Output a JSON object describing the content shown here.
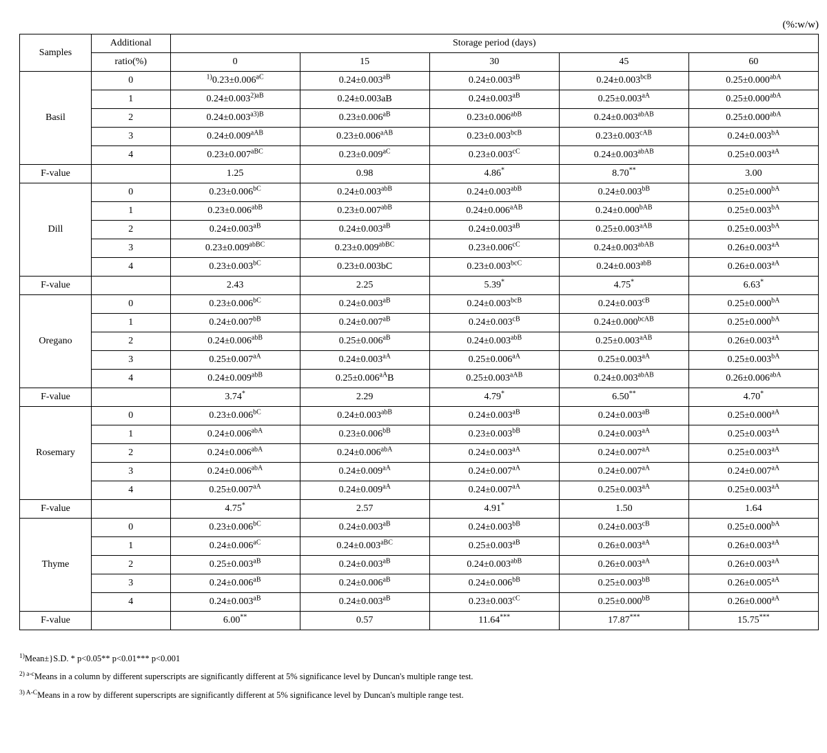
{
  "unit_label": "(%:w/w)",
  "headers": {
    "samples": "Samples",
    "additional_ratio_line1": "Additional",
    "additional_ratio_line2": "ratio(%)",
    "storage_period": "Storage period (days)",
    "days": [
      "0",
      "15",
      "30",
      "45",
      "60"
    ]
  },
  "samples": [
    {
      "name": "Basil",
      "fvalue_label": "F-value",
      "rows": [
        {
          "ratio": "0",
          "cells": [
            {
              "pre_sup": "1)",
              "val": "0.23±0.006",
              "sup": "aC"
            },
            {
              "val": "0.24±0.003",
              "sup": "aB"
            },
            {
              "val": "0.24±0.003",
              "sup": "aB"
            },
            {
              "val": "0.24±0.003",
              "sup": "bcB"
            },
            {
              "val": "0.25±0.000",
              "sup": "abA"
            }
          ]
        },
        {
          "ratio": "1",
          "cells": [
            {
              "val": "0.24±0.003",
              "sup": "2)aB"
            },
            {
              "val": "0.24±0.003aB"
            },
            {
              "val": "0.24±0.003",
              "sup": "aB"
            },
            {
              "val": "0.25±0.003",
              "sup": "aA"
            },
            {
              "val": "0.25±0.000",
              "sup": "abA"
            }
          ]
        },
        {
          "ratio": "2",
          "cells": [
            {
              "val": "0.24±0.003",
              "sup": "a3)B"
            },
            {
              "val": "0.23±0.006",
              "sup": "aB"
            },
            {
              "val": "0.23±0.006",
              "sup": "abB"
            },
            {
              "val": "0.24±0.003",
              "sup": "abAB"
            },
            {
              "val": "0.25±0.000",
              "sup": "abA"
            }
          ]
        },
        {
          "ratio": "3",
          "cells": [
            {
              "val": "0.24±0.009",
              "sup": "aAB"
            },
            {
              "val": "0.23±0.006",
              "sup": "aAB"
            },
            {
              "val": "0.23±0.003",
              "sup": "bcB"
            },
            {
              "val": "0.23±0.003",
              "sup": "cAB"
            },
            {
              "val": "0.24±0.003",
              "sup": "bA"
            }
          ]
        },
        {
          "ratio": "4",
          "cells": [
            {
              "val": "0.23±0.007",
              "sup": "aBC"
            },
            {
              "val": "0.23±0.009",
              "sup": "aC"
            },
            {
              "val": "0.23±0.003",
              "sup": "cC"
            },
            {
              "val": "0.24±0.003",
              "sup": "abAB"
            },
            {
              "val": "0.25±0.003",
              "sup": "aA"
            }
          ]
        }
      ],
      "fvalues": [
        "1.25",
        "0.98",
        "4.86*",
        "8.70**",
        "3.00"
      ]
    },
    {
      "name": "Dill",
      "fvalue_label": "F-value",
      "rows": [
        {
          "ratio": "0",
          "cells": [
            {
              "val": "0.23±0.006",
              "sup": "bC"
            },
            {
              "val": "0.24±0.003",
              "sup": "abB"
            },
            {
              "val": "0.24±0.003",
              "sup": "abB"
            },
            {
              "val": "0.24±0.003",
              "sup": "bB"
            },
            {
              "val": "0.25±0.000",
              "sup": "bA"
            }
          ]
        },
        {
          "ratio": "1",
          "cells": [
            {
              "val": "0.23±0.006",
              "sup": "abB"
            },
            {
              "val": "0.23±0.007",
              "sup": "abB"
            },
            {
              "val": "0.24±0.006",
              "sup": "aAB"
            },
            {
              "val": "0.24±0.000",
              "sup": "bAB"
            },
            {
              "val": "0.25±0.003",
              "sup": "bA"
            }
          ]
        },
        {
          "ratio": "2",
          "cells": [
            {
              "val": "0.24±0.003",
              "sup": "aB"
            },
            {
              "val": "0.24±0.003",
              "sup": "aB"
            },
            {
              "val": "0.24±0.003",
              "sup": "aB"
            },
            {
              "val": "0.25±0.003",
              "sup": "aAB"
            },
            {
              "val": "0.25±0.003",
              "sup": "bA"
            }
          ]
        },
        {
          "ratio": "3",
          "cells": [
            {
              "val": "0.23±0.009",
              "sup": "abBC"
            },
            {
              "val": "0.23±0.009",
              "sup": "abBC"
            },
            {
              "val": "0.23±0.006",
              "sup": "cC"
            },
            {
              "val": "0.24±0.003",
              "sup": "abAB"
            },
            {
              "val": "0.26±0.003",
              "sup": "aA"
            }
          ]
        },
        {
          "ratio": "4",
          "cells": [
            {
              "val": "0.23±0.003",
              "sup": "bC"
            },
            {
              "val": "0.23±0.003bC"
            },
            {
              "val": "0.23±0.003",
              "sup": "bcC"
            },
            {
              "val": "0.24±0.003",
              "sup": "abB"
            },
            {
              "val": "0.26±0.003",
              "sup": "aA"
            }
          ]
        }
      ],
      "fvalues": [
        "2.43",
        "2.25",
        "5.39*",
        "4.75*",
        "6.63*"
      ]
    },
    {
      "name": "Oregano",
      "fvalue_label": "F-value",
      "rows": [
        {
          "ratio": "0",
          "cells": [
            {
              "val": "0.23±0.006",
              "sup": "bC"
            },
            {
              "val": "0.24±0.003",
              "sup": "aB"
            },
            {
              "val": "0.24±0.003",
              "sup": "bcB"
            },
            {
              "val": "0.24±0.003",
              "sup": "cB"
            },
            {
              "val": "0.25±0.000",
              "sup": "bA"
            }
          ]
        },
        {
          "ratio": "1",
          "cells": [
            {
              "val": "0.24±0.007",
              "sup": "bB"
            },
            {
              "val": "0.24±0.007",
              "sup": "aB"
            },
            {
              "val": "0.24±0.003",
              "sup": "cB"
            },
            {
              "val": "0.24±0.000",
              "sup": "bcAB"
            },
            {
              "val": "0.25±0.000",
              "sup": "bA"
            }
          ]
        },
        {
          "ratio": "2",
          "cells": [
            {
              "val": "0.24±0.006",
              "sup": "abB"
            },
            {
              "val": "0.25±0.006",
              "sup": "aB"
            },
            {
              "val": "0.24±0.003",
              "sup": "abB"
            },
            {
              "val": "0.25±0.003",
              "sup": "aAB"
            },
            {
              "val": "0.26±0.003",
              "sup": "aA"
            }
          ]
        },
        {
          "ratio": "3",
          "cells": [
            {
              "val": "0.25±0.007",
              "sup": "aA"
            },
            {
              "val": "0.24±0.003",
              "sup": "aA"
            },
            {
              "val": "0.25±0.006",
              "sup": "aA"
            },
            {
              "val": "0.25±0.003",
              "sup": "aA"
            },
            {
              "val": "0.25±0.003",
              "sup": "bA"
            }
          ]
        },
        {
          "ratio": "4",
          "cells": [
            {
              "val": "0.24±0.009",
              "sup": "abB"
            },
            {
              "val": "0.25±0.006",
              "sup": "aA",
              "post": "B"
            },
            {
              "val": "0.25±0.003",
              "sup": "aAB"
            },
            {
              "val": "0.24±0.003",
              "sup": "abAB"
            },
            {
              "val": "0.26±0.006",
              "sup": "abA"
            }
          ]
        }
      ],
      "fvalues": [
        "3.74*",
        "2.29",
        "4.79*",
        "6.50**",
        "4.70*"
      ]
    },
    {
      "name": "Rosemary",
      "fvalue_label": "F-value",
      "rows": [
        {
          "ratio": "0",
          "cells": [
            {
              "val": "0.23±0.006",
              "sup": "bC"
            },
            {
              "val": "0.24±0.003",
              "sup": "abB"
            },
            {
              "val": "0.24±0.003",
              "sup": "aB"
            },
            {
              "val": "0.24±0.003",
              "sup": "aB"
            },
            {
              "val": "0.25±0.000",
              "sup": "aA"
            }
          ]
        },
        {
          "ratio": "1",
          "cells": [
            {
              "val": "0.24±0.006",
              "sup": "abA"
            },
            {
              "val": "0.23±0.006",
              "sup": "bB"
            },
            {
              "val": "0.23±0.003",
              "sup": "bB"
            },
            {
              "val": "0.24±0.003",
              "sup": "aA"
            },
            {
              "val": "0.25±0.003",
              "sup": "aA"
            }
          ]
        },
        {
          "ratio": "2",
          "cells": [
            {
              "val": "0.24±0.006",
              "sup": "abA"
            },
            {
              "val": "0.24±0.006",
              "sup": "abA"
            },
            {
              "val": "0.24±0.003",
              "sup": "aA"
            },
            {
              "val": "0.24±0.007",
              "sup": "aA"
            },
            {
              "val": "0.25±0.003",
              "sup": "aA"
            }
          ]
        },
        {
          "ratio": "3",
          "cells": [
            {
              "val": "0.24±0.006",
              "sup": "abA"
            },
            {
              "val": "0.24±0.009",
              "sup": "aA"
            },
            {
              "val": "0.24±0.007",
              "sup": "aA"
            },
            {
              "val": "0.24±0.007",
              "sup": "aA"
            },
            {
              "val": "0.24±0.007",
              "sup": "aA"
            }
          ]
        },
        {
          "ratio": "4",
          "cells": [
            {
              "val": "0.25±0.007",
              "sup": "aA"
            },
            {
              "val": "0.24±0.009",
              "sup": "aA"
            },
            {
              "val": "0.24±0.007",
              "sup": "aA"
            },
            {
              "val": "0.25±0.003",
              "sup": "aA"
            },
            {
              "val": "0.25±0.003",
              "sup": "aA"
            }
          ]
        }
      ],
      "fvalues": [
        "4.75*",
        "2.57",
        "4.91*",
        "1.50",
        "1.64"
      ]
    },
    {
      "name": "Thyme",
      "fvalue_label": "F-value",
      "rows": [
        {
          "ratio": "0",
          "cells": [
            {
              "val": "0.23±0.006",
              "sup": "bC"
            },
            {
              "val": "0.24±0.003",
              "sup": "aB"
            },
            {
              "val": "0.24±0.003",
              "sup": "bB"
            },
            {
              "val": "0.24±0.003",
              "sup": "cB"
            },
            {
              "val": "0.25±0.000",
              "sup": "bA"
            }
          ]
        },
        {
          "ratio": "1",
          "cells": [
            {
              "val": "0.24±0.006",
              "sup": "aC"
            },
            {
              "val": "0.24±0.003",
              "sup": "aBC"
            },
            {
              "val": "0.25±0.003",
              "sup": "aB"
            },
            {
              "val": "0.26±0.003",
              "sup": "aA"
            },
            {
              "val": "0.26±0.003",
              "sup": "aA"
            }
          ]
        },
        {
          "ratio": "2",
          "cells": [
            {
              "val": "0.25±0.003",
              "sup": "aB"
            },
            {
              "val": "0.24±0.003",
              "sup": "aB"
            },
            {
              "val": "0.24±0.003",
              "sup": "abB"
            },
            {
              "val": "0.26±0.003",
              "sup": "aA"
            },
            {
              "val": "0.26±0.003",
              "sup": "aA"
            }
          ]
        },
        {
          "ratio": "3",
          "cells": [
            {
              "val": "0.24±0.006",
              "sup": "aB"
            },
            {
              "val": "0.24±0.006",
              "sup": "aB"
            },
            {
              "val": "0.24±0.006",
              "sup": "bB"
            },
            {
              "val": "0.25±0.003",
              "sup": "bB"
            },
            {
              "val": "0.26±0.005",
              "sup": "aA"
            }
          ]
        },
        {
          "ratio": "4",
          "cells": [
            {
              "val": "0.24±0.003",
              "sup": "aB"
            },
            {
              "val": "0.24±0.003",
              "sup": "aB"
            },
            {
              "val": "0.23±0.003",
              "sup": "cC"
            },
            {
              "val": "0.25±0.000",
              "sup": "bB"
            },
            {
              "val": "0.26±0.000",
              "sup": "aA"
            }
          ]
        }
      ],
      "fvalues": [
        "6.00**",
        "0.57",
        "11.64***",
        "17.87***",
        "15.75***"
      ]
    }
  ],
  "footnotes": [
    {
      "sup": "1)",
      "text": "Mean±}S.D. * p<0.05** p<0.01*** p<0.001"
    },
    {
      "sup": "2) a-c",
      "text": "Means in a column by different superscripts are significantly different at 5% significance level by Duncan's multiple range test."
    },
    {
      "sup": "3) A-C",
      "text": "Means in a row by different superscripts are significantly different at 5% significance level by Duncan's multiple range test."
    }
  ]
}
